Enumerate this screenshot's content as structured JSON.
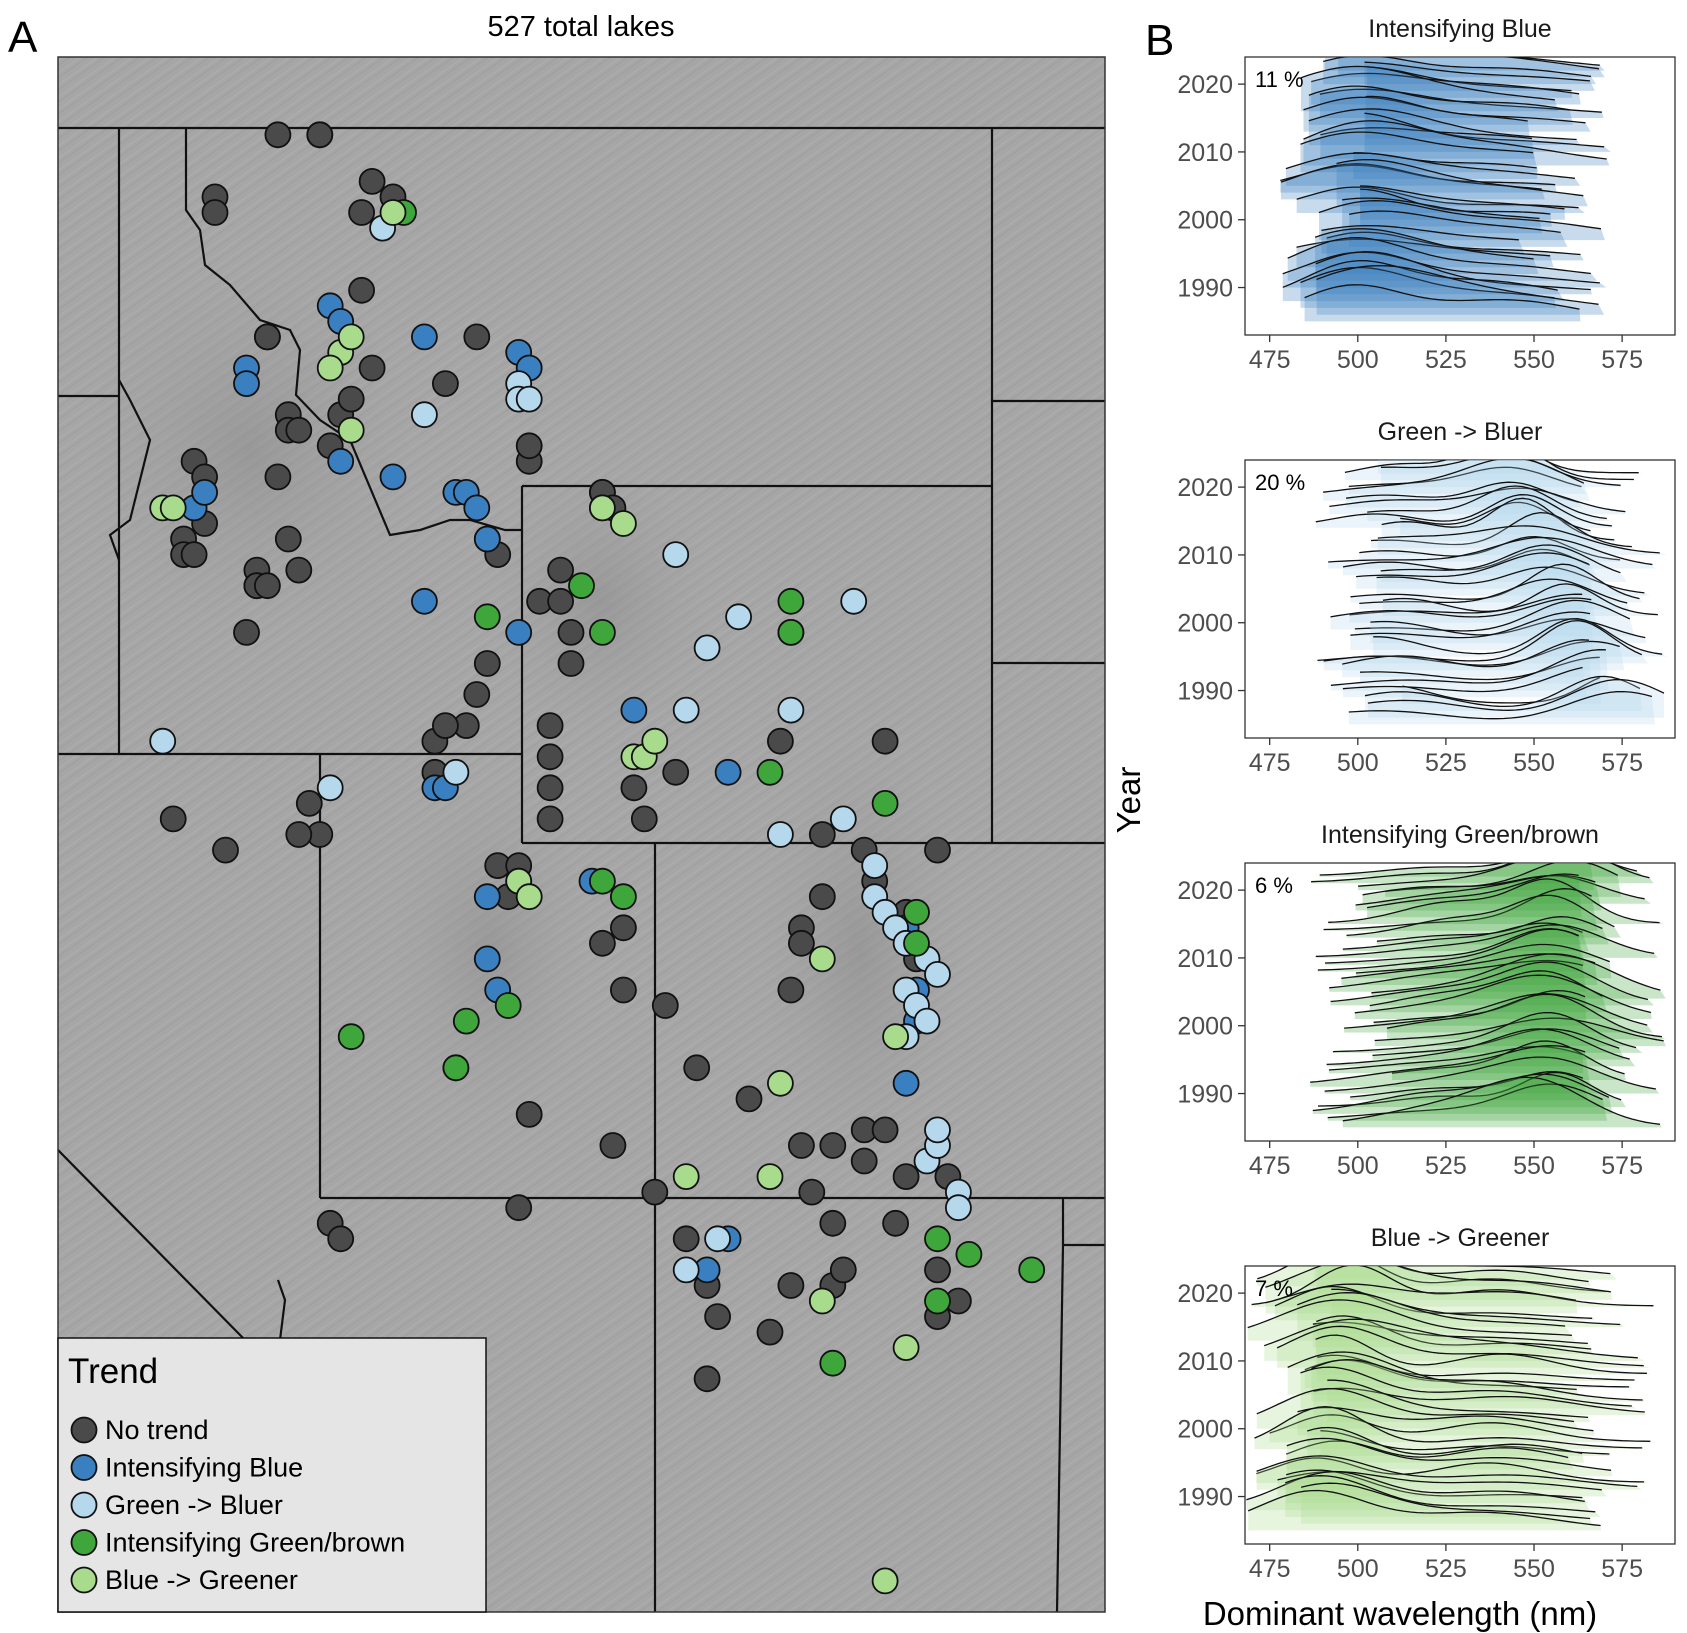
{
  "panels": {
    "a_label": "A",
    "b_label": "B"
  },
  "chart_data": [
    {
      "type": "scatter",
      "title": "527 total lakes",
      "legend": {
        "title": "Trend",
        "placement": "bottom-left",
        "entries": [
          {
            "name": "No trend",
            "color": "#4a4a4a"
          },
          {
            "name": "Intensifying Blue",
            "color": "#3a7fbf"
          },
          {
            "name": "Green -> Bluer",
            "color": "#b5d8ec"
          },
          {
            "name": "Intensifying Green/brown",
            "color": "#3fa63c"
          },
          {
            "name": "Blue -> Greener",
            "color": "#a9db8d"
          }
        ]
      },
      "series": [
        {
          "name": "No trend",
          "points": [
            [
              0.21,
              0.05
            ],
            [
              0.25,
              0.05
            ],
            [
              0.25,
              0.05
            ],
            [
              0.15,
              0.09
            ],
            [
              0.15,
              0.1
            ],
            [
              0.3,
              0.08
            ],
            [
              0.29,
              0.1
            ],
            [
              0.32,
              0.09
            ],
            [
              0.29,
              0.15
            ],
            [
              0.2,
              0.18
            ],
            [
              0.2,
              0.18
            ],
            [
              0.4,
              0.18
            ],
            [
              0.3,
              0.2
            ],
            [
              0.37,
              0.21
            ],
            [
              0.22,
              0.23
            ],
            [
              0.22,
              0.24
            ],
            [
              0.23,
              0.24
            ],
            [
              0.27,
              0.23
            ],
            [
              0.28,
              0.22
            ],
            [
              0.13,
              0.26
            ],
            [
              0.14,
              0.27
            ],
            [
              0.21,
              0.27
            ],
            [
              0.26,
              0.25
            ],
            [
              0.45,
              0.26
            ],
            [
              0.45,
              0.25
            ],
            [
              0.14,
              0.3
            ],
            [
              0.12,
              0.31
            ],
            [
              0.12,
              0.32
            ],
            [
              0.13,
              0.32
            ],
            [
              0.22,
              0.31
            ],
            [
              0.23,
              0.33
            ],
            [
              0.19,
              0.33
            ],
            [
              0.19,
              0.34
            ],
            [
              0.19,
              0.34
            ],
            [
              0.2,
              0.34
            ],
            [
              0.18,
              0.37
            ],
            [
              0.52,
              0.28
            ],
            [
              0.52,
              0.28
            ],
            [
              0.52,
              0.29
            ],
            [
              0.53,
              0.29
            ],
            [
              0.41,
              0.31
            ],
            [
              0.42,
              0.32
            ],
            [
              0.48,
              0.33
            ],
            [
              0.46,
              0.35
            ],
            [
              0.48,
              0.35
            ],
            [
              0.49,
              0.37
            ],
            [
              0.49,
              0.39
            ],
            [
              0.41,
              0.39
            ],
            [
              0.4,
              0.41
            ],
            [
              0.39,
              0.43
            ],
            [
              0.36,
              0.44
            ],
            [
              0.37,
              0.43
            ],
            [
              0.36,
              0.46
            ],
            [
              0.47,
              0.43
            ],
            [
              0.47,
              0.45
            ],
            [
              0.47,
              0.47
            ],
            [
              0.47,
              0.49
            ],
            [
              0.42,
              0.52
            ],
            [
              0.43,
              0.54
            ],
            [
              0.44,
              0.52
            ],
            [
              0.55,
              0.47
            ],
            [
              0.56,
              0.49
            ],
            [
              0.59,
              0.46
            ],
            [
              0.7,
              0.37
            ],
            [
              0.69,
              0.44
            ],
            [
              0.79,
              0.44
            ],
            [
              0.77,
              0.51
            ],
            [
              0.78,
              0.53
            ],
            [
              0.73,
              0.5
            ],
            [
              0.73,
              0.54
            ],
            [
              0.71,
              0.56
            ],
            [
              0.71,
              0.57
            ],
            [
              0.7,
              0.6
            ],
            [
              0.66,
              0.67
            ],
            [
              0.61,
              0.65
            ],
            [
              0.81,
              0.55
            ],
            [
              0.82,
              0.58
            ],
            [
              0.84,
              0.51
            ],
            [
              0.52,
              0.57
            ],
            [
              0.54,
              0.56
            ],
            [
              0.54,
              0.6
            ],
            [
              0.58,
              0.61
            ],
            [
              0.24,
              0.48
            ],
            [
              0.25,
              0.5
            ],
            [
              0.23,
              0.5
            ],
            [
              0.11,
              0.49
            ],
            [
              0.16,
              0.51
            ],
            [
              0.26,
              0.75
            ],
            [
              0.27,
              0.76
            ],
            [
              0.45,
              0.68
            ],
            [
              0.44,
              0.74
            ],
            [
              0.53,
              0.7
            ],
            [
              0.57,
              0.73
            ],
            [
              0.6,
              0.76
            ],
            [
              0.62,
              0.79
            ],
            [
              0.63,
              0.81
            ],
            [
              0.7,
              0.79
            ],
            [
              0.68,
              0.82
            ],
            [
              0.74,
              0.75
            ],
            [
              0.74,
              0.79
            ],
            [
              0.75,
              0.78
            ],
            [
              0.8,
              0.75
            ],
            [
              0.85,
              0.72
            ],
            [
              0.81,
              0.72
            ],
            [
              0.74,
              0.7
            ],
            [
              0.77,
              0.71
            ],
            [
              0.77,
              0.69
            ],
            [
              0.79,
              0.69
            ],
            [
              0.71,
              0.7
            ],
            [
              0.72,
              0.73
            ],
            [
              0.84,
              0.78
            ],
            [
              0.86,
              0.8
            ],
            [
              0.84,
              0.81
            ],
            [
              0.62,
              0.85
            ]
          ]
        },
        {
          "name": "Intensifying Blue",
          "points": [
            [
              0.26,
              0.16
            ],
            [
              0.27,
              0.17
            ],
            [
              0.18,
              0.2
            ],
            [
              0.18,
              0.21
            ],
            [
              0.13,
              0.29
            ],
            [
              0.14,
              0.28
            ],
            [
              0.27,
              0.26
            ],
            [
              0.32,
              0.27
            ],
            [
              0.35,
              0.18
            ],
            [
              0.44,
              0.19
            ],
            [
              0.45,
              0.2
            ],
            [
              0.38,
              0.28
            ],
            [
              0.39,
              0.28
            ],
            [
              0.4,
              0.29
            ],
            [
              0.41,
              0.31
            ],
            [
              0.35,
              0.35
            ],
            [
              0.44,
              0.37
            ],
            [
              0.55,
              0.42
            ],
            [
              0.64,
              0.46
            ],
            [
              0.36,
              0.47
            ],
            [
              0.37,
              0.47
            ],
            [
              0.41,
              0.54
            ],
            [
              0.51,
              0.53
            ],
            [
              0.41,
              0.58
            ],
            [
              0.42,
              0.6
            ],
            [
              0.81,
              0.56
            ],
            [
              0.82,
              0.6
            ],
            [
              0.82,
              0.62
            ],
            [
              0.81,
              0.66
            ],
            [
              0.64,
              0.76
            ],
            [
              0.62,
              0.78
            ]
          ]
        },
        {
          "name": "Green -> Bluer",
          "points": [
            [
              0.31,
              0.11
            ],
            [
              0.44,
              0.21
            ],
            [
              0.44,
              0.22
            ],
            [
              0.45,
              0.22
            ],
            [
              0.35,
              0.23
            ],
            [
              0.59,
              0.32
            ],
            [
              0.62,
              0.38
            ],
            [
              0.76,
              0.35
            ],
            [
              0.7,
              0.42
            ],
            [
              0.6,
              0.42
            ],
            [
              0.65,
              0.36
            ],
            [
              0.69,
              0.5
            ],
            [
              0.75,
              0.49
            ],
            [
              0.63,
              0.76
            ],
            [
              0.6,
              0.78
            ],
            [
              0.26,
              0.47
            ],
            [
              0.38,
              0.46
            ],
            [
              0.1,
              0.44
            ],
            [
              0.44,
              0.53
            ],
            [
              0.38,
              0.65
            ],
            [
              0.78,
              0.52
            ],
            [
              0.78,
              0.54
            ],
            [
              0.79,
              0.55
            ],
            [
              0.8,
              0.56
            ],
            [
              0.81,
              0.57
            ],
            [
              0.81,
              0.6
            ],
            [
              0.82,
              0.61
            ],
            [
              0.83,
              0.62
            ],
            [
              0.81,
              0.63
            ],
            [
              0.83,
              0.71
            ],
            [
              0.84,
              0.7
            ],
            [
              0.84,
              0.69
            ],
            [
              0.86,
              0.73
            ],
            [
              0.86,
              0.74
            ],
            [
              0.83,
              0.58
            ],
            [
              0.84,
              0.59
            ]
          ]
        },
        {
          "name": "Intensifying Green/brown",
          "points": [
            [
              0.33,
              0.1
            ],
            [
              0.41,
              0.36
            ],
            [
              0.5,
              0.34
            ],
            [
              0.52,
              0.37
            ],
            [
              0.7,
              0.35
            ],
            [
              0.7,
              0.37
            ],
            [
              0.52,
              0.53
            ],
            [
              0.54,
              0.54
            ],
            [
              0.43,
              0.61
            ],
            [
              0.39,
              0.62
            ],
            [
              0.38,
              0.65
            ],
            [
              0.28,
              0.63
            ],
            [
              0.68,
              0.46
            ],
            [
              0.79,
              0.48
            ],
            [
              0.82,
              0.55
            ],
            [
              0.82,
              0.57
            ],
            [
              0.84,
              0.76
            ],
            [
              0.87,
              0.77
            ],
            [
              0.93,
              0.78
            ],
            [
              0.74,
              0.84
            ],
            [
              0.84,
              0.8
            ]
          ]
        },
        {
          "name": "Blue -> Greener",
          "points": [
            [
              0.32,
              0.1
            ],
            [
              0.27,
              0.19
            ],
            [
              0.28,
              0.18
            ],
            [
              0.26,
              0.2
            ],
            [
              0.1,
              0.29
            ],
            [
              0.11,
              0.29
            ],
            [
              0.28,
              0.24
            ],
            [
              0.52,
              0.29
            ],
            [
              0.54,
              0.3
            ],
            [
              0.55,
              0.45
            ],
            [
              0.56,
              0.45
            ],
            [
              0.57,
              0.44
            ],
            [
              0.44,
              0.53
            ],
            [
              0.45,
              0.54
            ],
            [
              0.73,
              0.58
            ],
            [
              0.8,
              0.63
            ],
            [
              0.69,
              0.66
            ],
            [
              0.6,
              0.72
            ],
            [
              0.68,
              0.72
            ],
            [
              0.73,
              0.8
            ],
            [
              0.81,
              0.83
            ],
            [
              0.79,
              0.98
            ]
          ]
        }
      ]
    },
    {
      "type": "ridgeline",
      "xlabel": "Dominant wavelength (nm)",
      "ylabel": "Year",
      "xlim": [
        468,
        590
      ],
      "ylim": [
        1983,
        2024
      ],
      "xticks": [
        "475",
        "500",
        "525",
        "550",
        "575"
      ],
      "yticks": [
        "1990",
        "2000",
        "2010",
        "2020"
      ],
      "panels": [
        {
          "title": "Intensifying Blue",
          "percent": "11 %",
          "color": "#3a7fbf",
          "peak_center": 500,
          "peak_spread": 14,
          "shift_per_year": 0.0,
          "secondary": 540,
          "start_min": 478,
          "end_max": 572
        },
        {
          "title": "Green -> Bluer",
          "percent": "20 %",
          "color": "#b5d8ec",
          "peak_center": 556,
          "peak_spread": 9,
          "shift_per_year": -0.9,
          "secondary": 510,
          "start_min": 488,
          "end_max": 588
        },
        {
          "title": "Intensifying Green/brown",
          "percent": "6 %",
          "color": "#3fa63c",
          "peak_center": 556,
          "peak_spread": 10,
          "shift_per_year": 0.15,
          "secondary": 525,
          "start_min": 485,
          "end_max": 588
        },
        {
          "title": "Blue -> Greener",
          "percent": "7 %",
          "color": "#a9db8d",
          "peak_center": 493,
          "peak_spread": 11,
          "shift_per_year": 0.2,
          "secondary": 540,
          "start_min": 468,
          "end_max": 585
        }
      ]
    }
  ]
}
